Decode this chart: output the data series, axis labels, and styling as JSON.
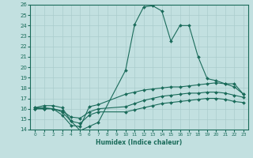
{
  "background_color": "#c2e0e0",
  "grid_color": "#aacccc",
  "line_color": "#1a6b5a",
  "xlabel": "Humidex (Indice chaleur)",
  "xlim": [
    -0.5,
    23.5
  ],
  "ylim": [
    14,
    26
  ],
  "yticks": [
    14,
    15,
    16,
    17,
    18,
    19,
    20,
    21,
    22,
    23,
    24,
    25,
    26
  ],
  "xticks": [
    0,
    1,
    2,
    3,
    4,
    5,
    6,
    7,
    8,
    9,
    10,
    11,
    12,
    13,
    14,
    15,
    16,
    17,
    18,
    19,
    20,
    21,
    22,
    23
  ],
  "line1_x": [
    0,
    1,
    2,
    3,
    4,
    5,
    6,
    7,
    10,
    11,
    12,
    13,
    14,
    15,
    16,
    17,
    18,
    19,
    20,
    21,
    22,
    23
  ],
  "line1_y": [
    16.1,
    16.3,
    16.3,
    16.1,
    14.8,
    13.9,
    14.3,
    14.7,
    19.7,
    24.1,
    25.8,
    25.9,
    25.4,
    22.5,
    24.0,
    24.0,
    21.0,
    18.9,
    18.7,
    18.4,
    18.4,
    17.4
  ],
  "line2_x": [
    0,
    1,
    2,
    3,
    4,
    5,
    6,
    7,
    10,
    11,
    12,
    13,
    14,
    15,
    16,
    17,
    18,
    19,
    20,
    21,
    22,
    23
  ],
  "line2_y": [
    16.1,
    16.1,
    16.0,
    15.4,
    14.4,
    14.3,
    16.2,
    16.4,
    17.4,
    17.6,
    17.8,
    17.9,
    18.0,
    18.1,
    18.1,
    18.2,
    18.3,
    18.4,
    18.5,
    18.4,
    18.1,
    17.4
  ],
  "line3_x": [
    0,
    1,
    2,
    3,
    4,
    5,
    6,
    7,
    10,
    11,
    12,
    13,
    14,
    15,
    16,
    17,
    18,
    19,
    20,
    21,
    22,
    23
  ],
  "line3_y": [
    16.0,
    16.0,
    16.0,
    15.8,
    15.2,
    15.1,
    15.7,
    16.0,
    16.2,
    16.5,
    16.8,
    17.0,
    17.2,
    17.3,
    17.4,
    17.5,
    17.5,
    17.6,
    17.6,
    17.5,
    17.3,
    17.1
  ],
  "line4_x": [
    0,
    1,
    2,
    3,
    4,
    5,
    6,
    7,
    10,
    11,
    12,
    13,
    14,
    15,
    16,
    17,
    18,
    19,
    20,
    21,
    22,
    23
  ],
  "line4_y": [
    16.0,
    16.0,
    16.0,
    15.7,
    14.8,
    14.6,
    15.4,
    15.7,
    15.7,
    15.9,
    16.1,
    16.3,
    16.5,
    16.6,
    16.7,
    16.8,
    16.9,
    17.0,
    17.0,
    16.9,
    16.7,
    16.6
  ]
}
